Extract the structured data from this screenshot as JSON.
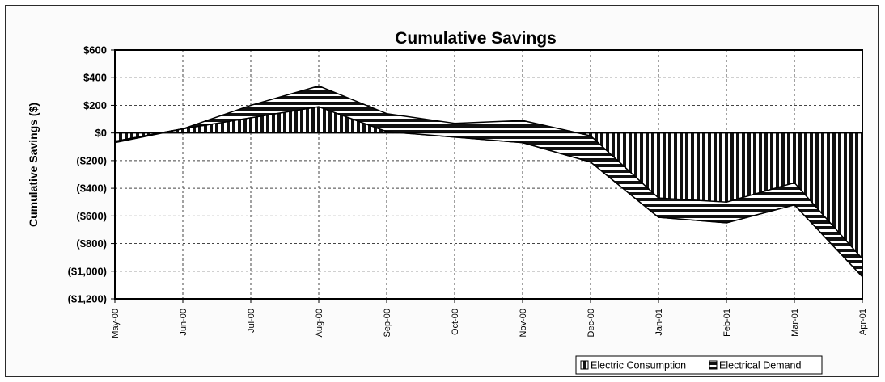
{
  "chart_data": {
    "type": "area",
    "title": "Cumulative Savings",
    "xlabel": "",
    "ylabel": "Cumulative Savings ($)",
    "ylim": [
      -1200,
      600
    ],
    "yticks": [
      {
        "value": 600,
        "label": "$600"
      },
      {
        "value": 400,
        "label": "$400"
      },
      {
        "value": 200,
        "label": "$200"
      },
      {
        "value": 0,
        "label": "$0"
      },
      {
        "value": -200,
        "label": "($200)"
      },
      {
        "value": -400,
        "label": "($400)"
      },
      {
        "value": -600,
        "label": "($600)"
      },
      {
        "value": -800,
        "label": "($800)"
      },
      {
        "value": -1000,
        "label": "($1,000)"
      },
      {
        "value": -1200,
        "label": "($1,200)"
      }
    ],
    "categories": [
      "May-00",
      "Jun-00",
      "Jul-00",
      "Aug-00",
      "Sep-00",
      "Oct-00",
      "Nov-00",
      "Dec-00",
      "Jan-01",
      "Feb-01",
      "Mar-01",
      "Apr-01"
    ],
    "series": [
      {
        "name": "Electric Consumption",
        "values": [
          -60,
          30,
          110,
          190,
          10,
          -30,
          -70,
          -210,
          -610,
          -650,
          -520,
          -1040
        ]
      },
      {
        "name": "Electrical Demand",
        "values": [
          -10,
          0,
          90,
          150,
          130,
          100,
          160,
          190,
          140,
          150,
          160,
          130
        ]
      }
    ],
    "stacked": true,
    "grid": true,
    "legend": "bottom-right"
  }
}
